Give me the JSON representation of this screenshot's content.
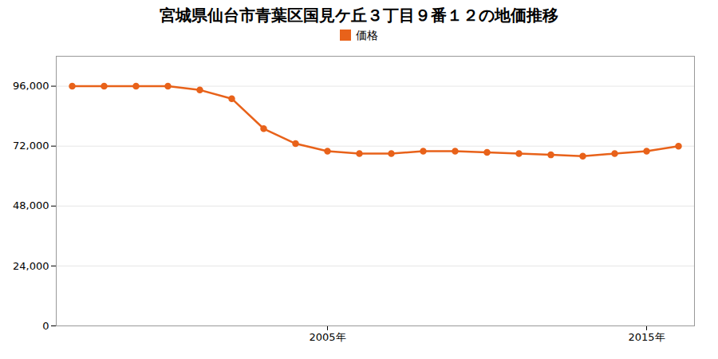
{
  "chart_data": {
    "type": "line",
    "title": "宮城県仙台市青葉区国見ケ丘３丁目９番１２の地価推移",
    "x": [
      1997,
      1998,
      1999,
      2000,
      2001,
      2002,
      2003,
      2004,
      2005,
      2006,
      2007,
      2008,
      2009,
      2010,
      2011,
      2012,
      2013,
      2014,
      2015,
      2016
    ],
    "series": [
      {
        "name": "価格",
        "color": "#e8621a",
        "marker": "circle",
        "values": [
          96000,
          96000,
          96000,
          96000,
          94500,
          91000,
          79000,
          73000,
          70000,
          69000,
          69000,
          70000,
          70000,
          69500,
          69000,
          68500,
          68000,
          69000,
          70000,
          72000
        ]
      }
    ],
    "xlim": [
      1996.5,
      2016.5
    ],
    "xticks": [
      {
        "value": 2005,
        "label": "2005年"
      },
      {
        "value": 2015,
        "label": "2015年"
      }
    ],
    "ylim": [
      0,
      108000
    ],
    "yticks": [
      0,
      {
        "value": 24000,
        "label": "24,000"
      },
      {
        "value": 48000,
        "label": "48,000"
      },
      {
        "value": 72000,
        "label": "72,000"
      },
      {
        "value": 96000,
        "label": "96,000"
      }
    ],
    "grid": true,
    "legend": "top"
  }
}
